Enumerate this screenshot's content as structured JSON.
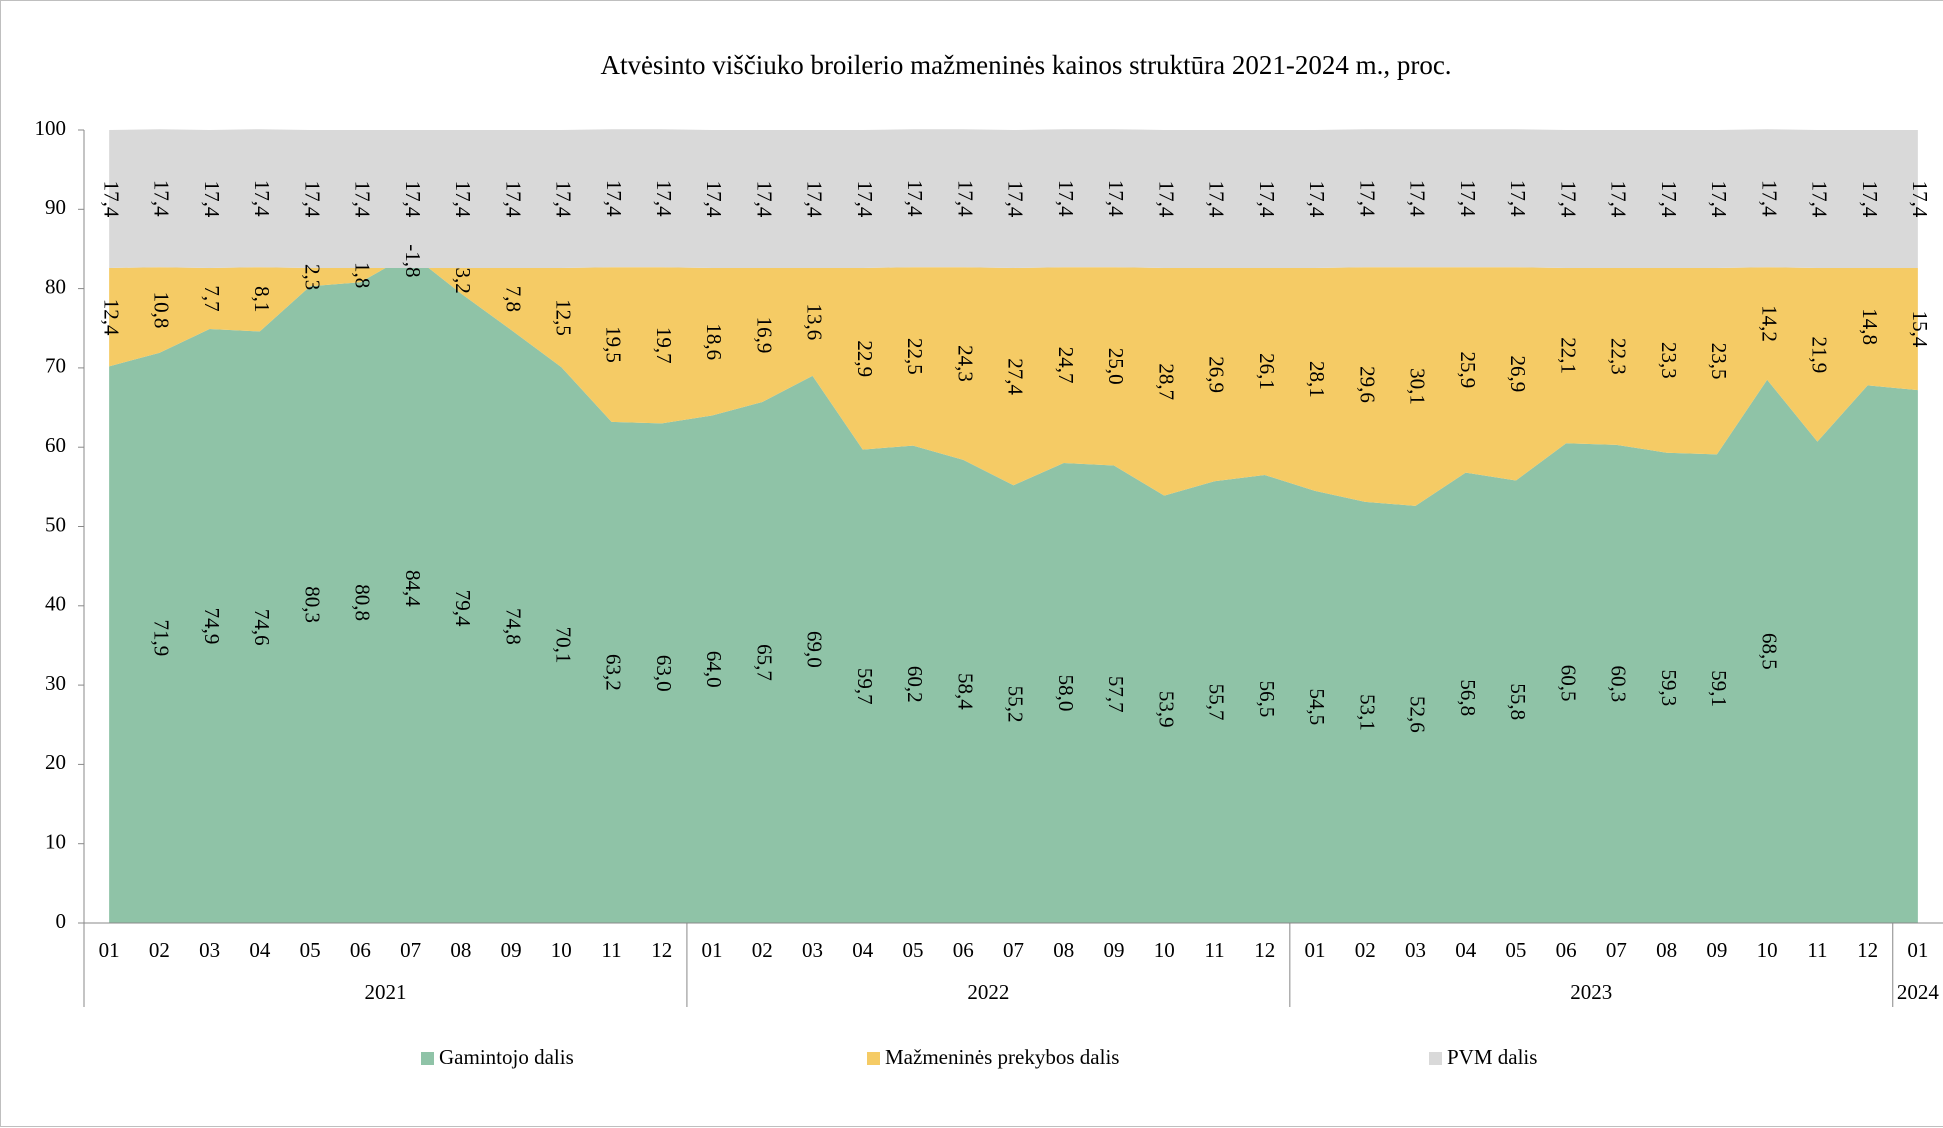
{
  "chart_data": {
    "type": "stacked_area",
    "title": "Atvėsinto viščiuko broilerio mažmeninės kainos struktūra 2021-2024 m., proc.",
    "categories": [
      "01",
      "02",
      "03",
      "04",
      "05",
      "06",
      "07",
      "08",
      "09",
      "10",
      "11",
      "12",
      "01",
      "02",
      "03",
      "04",
      "05",
      "06",
      "07",
      "08",
      "09",
      "10",
      "11",
      "12",
      "01",
      "02",
      "03",
      "04",
      "05",
      "06",
      "07",
      "08",
      "09",
      "10",
      "11",
      "12",
      "01"
    ],
    "year_of_category": [
      "2021",
      "2021",
      "2021",
      "2021",
      "2021",
      "2021",
      "2021",
      "2021",
      "2021",
      "2021",
      "2021",
      "2021",
      "2022",
      "2022",
      "2022",
      "2022",
      "2022",
      "2022",
      "2022",
      "2022",
      "2022",
      "2022",
      "2022",
      "2022",
      "2023",
      "2023",
      "2023",
      "2023",
      "2023",
      "2023",
      "2023",
      "2023",
      "2023",
      "2023",
      "2023",
      "2023",
      "2024"
    ],
    "series": [
      {
        "name": "Gamintojo dalis",
        "color": "#8fc3a7",
        "values": [
          70.2,
          71.9,
          74.9,
          74.6,
          80.3,
          80.8,
          84.4,
          79.4,
          74.8,
          70.1,
          63.2,
          63.0,
          64.0,
          65.7,
          69.0,
          59.7,
          60.2,
          58.4,
          55.2,
          58.0,
          57.7,
          53.9,
          55.7,
          56.5,
          54.5,
          53.1,
          52.6,
          56.8,
          55.8,
          60.5,
          60.3,
          59.3,
          59.1,
          68.5,
          60.7,
          67.8,
          67.2
        ],
        "value_labels": [
          null,
          "71,9",
          "74,9",
          "74,6",
          "80,3",
          "80,8",
          "84,4",
          "79,4",
          "74,8",
          "70,1",
          "63,2",
          "63,0",
          "64,0",
          "65,7",
          "69,0",
          "59,7",
          "60,2",
          "58,4",
          "55,2",
          "58,0",
          "57,7",
          "53,9",
          "55,7",
          "56,5",
          "54,5",
          "53,1",
          "52,6",
          "56,8",
          "55,8",
          "60,5",
          "60,3",
          "59,3",
          "59,1",
          "68,5",
          null,
          null,
          null
        ]
      },
      {
        "name": "Mažmeninės prekybos dalis",
        "color": "#f5cb65",
        "values": [
          12.4,
          10.8,
          7.7,
          8.1,
          2.3,
          1.8,
          -1.8,
          3.2,
          7.8,
          12.5,
          19.5,
          19.7,
          18.6,
          16.9,
          13.6,
          22.9,
          22.5,
          24.3,
          27.4,
          24.7,
          25.0,
          28.7,
          26.9,
          26.1,
          28.1,
          29.6,
          30.1,
          25.9,
          26.9,
          22.1,
          22.3,
          23.3,
          23.5,
          14.2,
          21.9,
          14.8,
          15.4
        ],
        "value_labels": [
          "12,4",
          "10,8",
          "7,7",
          "8,1",
          "2,3",
          "1,8",
          "-1,8",
          "3,2",
          "7,8",
          "12,5",
          "19,5",
          "19,7",
          "18,6",
          "16,9",
          "13,6",
          "22,9",
          "22,5",
          "24,3",
          "27,4",
          "24,7",
          "25,0",
          "28,7",
          "26,9",
          "26,1",
          "28,1",
          "29,6",
          "30,1",
          "25,9",
          "26,9",
          "22,1",
          "22,3",
          "23,3",
          "23,5",
          "14,2",
          "21,9",
          "14,8",
          "15,4"
        ]
      },
      {
        "name": "PVM dalis",
        "color": "#d9d9d9",
        "values": [
          17.4,
          17.4,
          17.4,
          17.4,
          17.4,
          17.4,
          17.4,
          17.4,
          17.4,
          17.4,
          17.4,
          17.4,
          17.4,
          17.4,
          17.4,
          17.4,
          17.4,
          17.4,
          17.4,
          17.4,
          17.4,
          17.4,
          17.4,
          17.4,
          17.4,
          17.4,
          17.4,
          17.4,
          17.4,
          17.4,
          17.4,
          17.4,
          17.4,
          17.4,
          17.4,
          17.4,
          17.4
        ],
        "value_labels": [
          "17,4",
          "17,4",
          "17,4",
          "17,4",
          "17,4",
          "17,4",
          "17,4",
          "17,4",
          "17,4",
          "17,4",
          "17,4",
          "17,4",
          "17,4",
          "17,4",
          "17,4",
          "17,4",
          "17,4",
          "17,4",
          "17,4",
          "17,4",
          "17,4",
          "17,4",
          "17,4",
          "17,4",
          "17,4",
          "17,4",
          "17,4",
          "17,4",
          "17,4",
          "17,4",
          "17,4",
          "17,4",
          "17,4",
          "17,4",
          "17,4",
          "17,4",
          "17,4"
        ]
      }
    ],
    "ylim": [
      0,
      100
    ],
    "yticks": [
      0,
      10,
      20,
      30,
      40,
      50,
      60,
      70,
      80,
      90,
      100
    ],
    "grid": false,
    "legend": "bottom"
  }
}
